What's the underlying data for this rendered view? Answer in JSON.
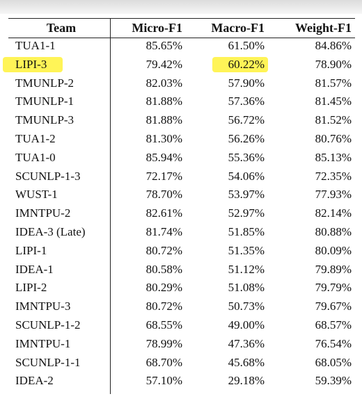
{
  "table": {
    "header": [
      "Team",
      "Micro-F1",
      "Macro-F1",
      "Weight-F1"
    ],
    "rows": [
      [
        "TUA1-1",
        "85.65%",
        "61.50%",
        "84.86%"
      ],
      [
        "LIPI-3",
        "79.42%",
        "60.22%",
        "78.90%"
      ],
      [
        "TMUNLP-2",
        "82.03%",
        "57.90%",
        "81.57%"
      ],
      [
        "TMUNLP-1",
        "81.88%",
        "57.36%",
        "81.45%"
      ],
      [
        "TMUNLP-3",
        "81.88%",
        "56.72%",
        "81.52%"
      ],
      [
        "TUA1-2",
        "81.30%",
        "56.26%",
        "80.76%"
      ],
      [
        "TUA1-0",
        "85.94%",
        "55.36%",
        "85.13%"
      ],
      [
        "SCUNLP-1-3",
        "72.17%",
        "54.06%",
        "72.35%"
      ],
      [
        "WUST-1",
        "78.70%",
        "53.97%",
        "77.93%"
      ],
      [
        "IMNTPU-2",
        "82.61%",
        "52.97%",
        "82.14%"
      ],
      [
        "IDEA-3 (Late)",
        "81.74%",
        "51.85%",
        "80.88%"
      ],
      [
        "LIPI-1",
        "80.72%",
        "51.35%",
        "80.09%"
      ],
      [
        "IDEA-1",
        "80.58%",
        "51.12%",
        "79.89%"
      ],
      [
        "LIPI-2",
        "80.29%",
        "51.08%",
        "79.79%"
      ],
      [
        "IMNTPU-3",
        "80.72%",
        "50.73%",
        "79.67%"
      ],
      [
        "SCUNLP-1-2",
        "68.55%",
        "49.00%",
        "68.57%"
      ],
      [
        "IMNTPU-1",
        "78.99%",
        "47.36%",
        "76.54%"
      ],
      [
        "SCUNLP-1-1",
        "68.70%",
        "45.68%",
        "68.05%"
      ],
      [
        "IDEA-2",
        "57.10%",
        "29.18%",
        "59.39%"
      ]
    ]
  }
}
